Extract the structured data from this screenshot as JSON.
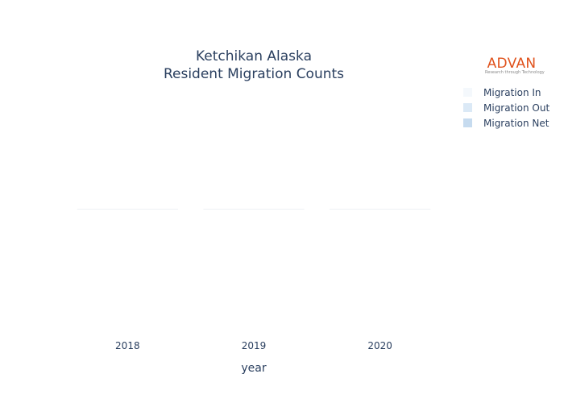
{
  "chart_data": {
    "type": "bar",
    "title_lines": [
      "Ketchikan Alaska",
      "Resident Migration Counts"
    ],
    "xlabel": "year",
    "ylabel": "",
    "categories": [
      "2018",
      "2019",
      "2020"
    ],
    "series": [
      {
        "name": "Migration In",
        "values": [
          0,
          0,
          0
        ],
        "color": "#f4f8fc"
      },
      {
        "name": "Migration Out",
        "values": [
          0,
          0,
          0
        ],
        "color": "#dbe9f6"
      },
      {
        "name": "Migration Net",
        "values": [
          0,
          0,
          0
        ],
        "color": "#c6dbef"
      }
    ],
    "zero_line_color": "#eef1f5",
    "legend_position": "top-right",
    "grid": false
  },
  "logo": {
    "text": "ADVAN",
    "tagline": "Research through Technology",
    "color": "#e0521c"
  }
}
